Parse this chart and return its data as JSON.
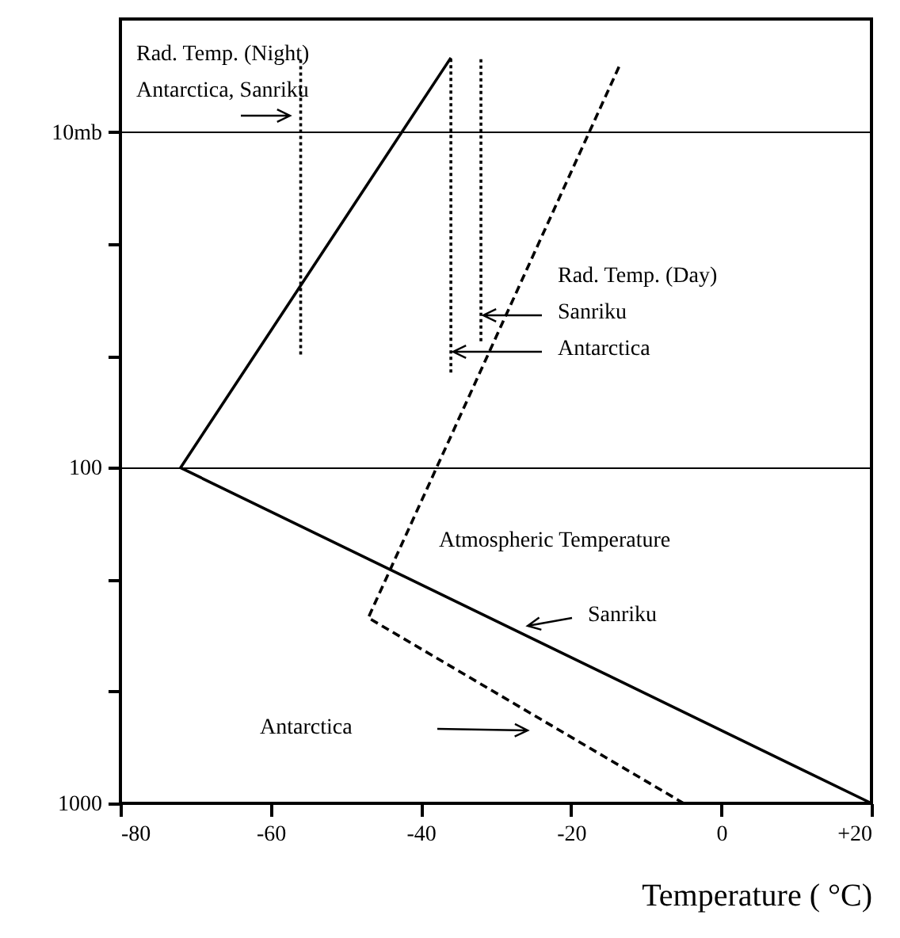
{
  "chart_data": {
    "type": "line",
    "xlabel": "Temperature ( °C)",
    "xlim": [
      -80,
      20
    ],
    "xticks": [
      -80,
      -60,
      -40,
      -20,
      0,
      {
        "value": 20,
        "label": "+20"
      }
    ],
    "ylim": [
      1000,
      4.6
    ],
    "yticks": [
      {
        "value": 10,
        "label": "10mb"
      },
      {
        "value": 21.5,
        "label": null
      },
      {
        "value": 46.4,
        "label": null
      },
      100,
      {
        "value": 215,
        "label": null
      },
      {
        "value": 464,
        "label": null
      },
      1000
    ],
    "log": "y",
    "grid": "y",
    "series": [
      {
        "color": "#000000",
        "line_style": "solid",
        "x": [
          20,
          -72,
          -36
        ],
        "values": [
          1000,
          100,
          6
        ]
      },
      {
        "color": "#000000",
        "line_style": "dashed",
        "x": [
          -5,
          -47,
          -13.5
        ],
        "values": [
          1000,
          280,
          6.3
        ]
      },
      {
        "color": "#000000",
        "line_style": "dotted",
        "x": [
          -56,
          -56
        ],
        "values": [
          46,
          6
        ]
      },
      {
        "color": "#000000",
        "line_style": "dotted",
        "x": [
          -36,
          -36
        ],
        "values": [
          52,
          6
        ]
      },
      {
        "color": "#000000",
        "line_style": "dotted",
        "x": [
          -32,
          -32
        ],
        "values": [
          42,
          6
        ]
      }
    ],
    "annotations": [
      "Rad. Temp. (Night)",
      "Antarctica, Sanriku",
      "Rad. Temp. (Day)",
      "Sanriku",
      "Antarctica",
      "Atmospheric Temperature",
      "Sanriku",
      "Antarctica"
    ]
  }
}
